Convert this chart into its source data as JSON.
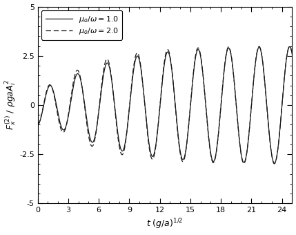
{
  "xlim": [
    0,
    25
  ],
  "ylim": [
    -5,
    5
  ],
  "xticks": [
    0,
    3,
    6,
    9,
    12,
    15,
    18,
    21,
    24
  ],
  "yticks": [
    -5,
    -2.5,
    0,
    2.5,
    5
  ],
  "xlabel": "t (g/a)^{1/2}",
  "ylabel": "F_x^{(2)} / pgaA_i^2",
  "legend1_label": "\\mu_o/\\omega=1.0",
  "legend2_label": "\\mu_o/\\omega=2.0",
  "t_max": 25.0,
  "freq": 2.094395,
  "A_ss": 3.0,
  "beta1": 0.18,
  "beta2": 0.22,
  "background_color": "#ffffff",
  "line_color": "#1a1a1a",
  "fontsize_label": 9,
  "fontsize_legend": 8,
  "fontsize_tick": 8
}
